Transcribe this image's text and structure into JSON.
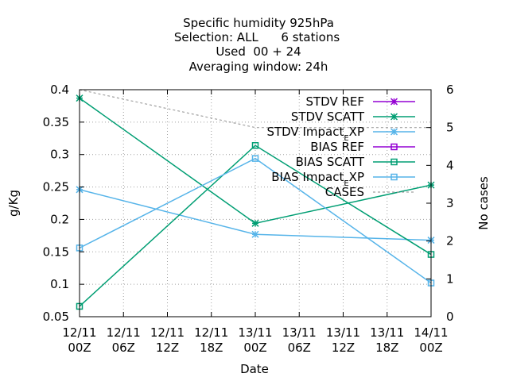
{
  "chart_data": {
    "type": "line",
    "title_lines": [
      "Specific humidity 925hPa",
      "Selection: ALL      6 stations",
      "Used  00 + 24",
      "Averaging window: 24h"
    ],
    "xlabel": "Date",
    "ylabel": "g/Kg",
    "y2label": "No cases",
    "x_ticks": [
      [
        "12/11",
        "00Z"
      ],
      [
        "12/11",
        "06Z"
      ],
      [
        "12/11",
        "12Z"
      ],
      [
        "12/11",
        "18Z"
      ],
      [
        "13/11",
        "00Z"
      ],
      [
        "13/11",
        "06Z"
      ],
      [
        "13/11",
        "12Z"
      ],
      [
        "13/11",
        "18Z"
      ],
      [
        "14/11",
        "00Z"
      ]
    ],
    "x_hours": [
      0,
      6,
      12,
      18,
      24,
      30,
      36,
      42,
      48
    ],
    "ylim": [
      0.05,
      0.4
    ],
    "y_ticks": [
      "0.05",
      "0.1",
      "0.15",
      "0.2",
      "0.25",
      "0.3",
      "0.35",
      "0.4"
    ],
    "y2lim": [
      0,
      6
    ],
    "y2_ticks": [
      "0",
      "1",
      "2",
      "3",
      "4",
      "5",
      "6"
    ],
    "grid": true,
    "legend_position": "top-right",
    "series": [
      {
        "name": "STDV REF",
        "color": "#9400d3",
        "marker": "star",
        "axis": "y",
        "x": [],
        "values": []
      },
      {
        "name": "STDV SCATT",
        "color": "#009e73",
        "marker": "star",
        "axis": "y",
        "x": [
          0,
          24,
          48
        ],
        "values": [
          0.387,
          0.194,
          0.253
        ]
      },
      {
        "name": "STDV Impact_EXP",
        "color": "#56b4e9",
        "marker": "star",
        "axis": "y",
        "x": [
          0,
          24,
          48
        ],
        "values": [
          0.246,
          0.177,
          0.168
        ]
      },
      {
        "name": "BIAS REF",
        "color": "#9400d3",
        "marker": "square",
        "axis": "y",
        "x": [],
        "values": []
      },
      {
        "name": "BIAS SCATT",
        "color": "#009e73",
        "marker": "square",
        "axis": "y",
        "x": [
          0,
          24,
          48
        ],
        "values": [
          0.066,
          0.314,
          0.146
        ]
      },
      {
        "name": "BIAS Impact_EXP",
        "color": "#56b4e9",
        "marker": "square",
        "axis": "y",
        "x": [
          0,
          24,
          48
        ],
        "values": [
          0.156,
          0.294,
          0.102
        ]
      },
      {
        "name": "CASES",
        "color": "#a0a0a0",
        "marker": "none",
        "dashed": true,
        "axis": "y2",
        "x": [
          0,
          24,
          48
        ],
        "values": [
          6,
          5,
          5
        ]
      }
    ]
  }
}
